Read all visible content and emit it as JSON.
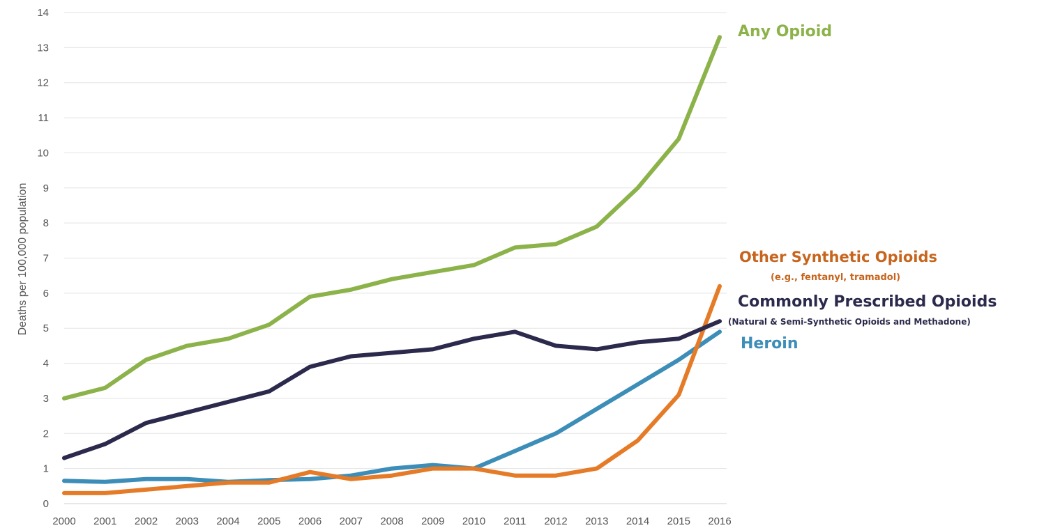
{
  "chart_data": {
    "type": "line",
    "title": "",
    "xlabel": "",
    "ylabel": "Deaths per 100,000 population",
    "ylim": [
      0,
      14
    ],
    "yticks": [
      0,
      1,
      2,
      3,
      4,
      5,
      6,
      7,
      8,
      9,
      10,
      11,
      12,
      13,
      14
    ],
    "grid": true,
    "legend": "direct labels at right end of lines",
    "x": [
      2000,
      2001,
      2002,
      2003,
      2004,
      2005,
      2006,
      2007,
      2008,
      2009,
      2010,
      2011,
      2012,
      2013,
      2014,
      2015,
      2016
    ],
    "series": [
      {
        "name": "Any Opioid",
        "color": "#8cb24a",
        "values": [
          3.0,
          3.3,
          4.1,
          4.5,
          4.7,
          5.1,
          5.9,
          6.1,
          6.4,
          6.6,
          6.8,
          7.3,
          7.4,
          7.9,
          9.0,
          10.4,
          13.3
        ]
      },
      {
        "name": "Other Synthetic Opioids",
        "sublabel": "(e.g., fentanyl, tramadol)",
        "color": "#e57b27",
        "values": [
          0.3,
          0.3,
          0.4,
          0.5,
          0.6,
          0.6,
          0.9,
          0.7,
          0.8,
          1.0,
          1.0,
          0.8,
          0.8,
          1.0,
          1.8,
          3.1,
          6.2
        ]
      },
      {
        "name": "Commonly Prescribed Opioids",
        "sublabel": "(Natural & Semi-Synthetic Opioids and Methadone)",
        "color": "#2b2a4c",
        "values": [
          1.3,
          1.7,
          2.3,
          2.6,
          2.9,
          3.2,
          3.9,
          4.2,
          4.3,
          4.4,
          4.7,
          4.9,
          4.5,
          4.4,
          4.6,
          4.7,
          5.2
        ]
      },
      {
        "name": "Heroin",
        "color": "#3c8db8",
        "values": [
          0.65,
          0.62,
          0.7,
          0.7,
          0.62,
          0.67,
          0.7,
          0.8,
          1.0,
          1.1,
          1.0,
          1.5,
          2.0,
          2.7,
          3.4,
          4.1,
          4.9
        ]
      }
    ]
  }
}
